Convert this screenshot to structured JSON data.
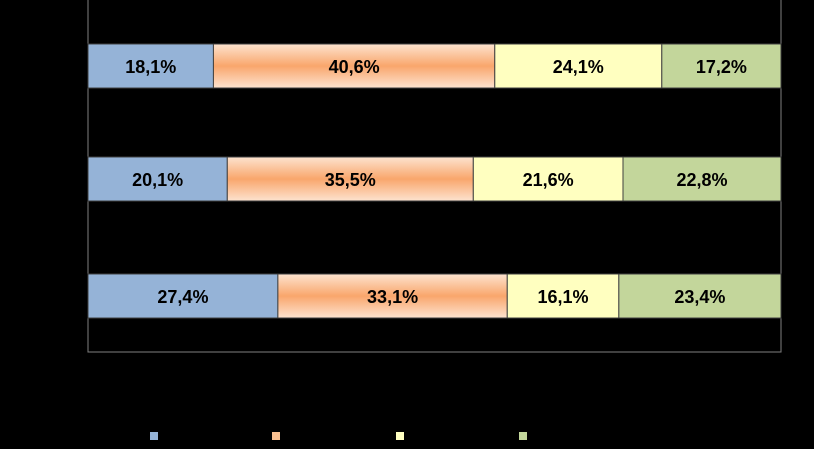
{
  "chart_data": {
    "type": "stacked_bar_horizontal",
    "categories": [
      null,
      null,
      null
    ],
    "xlim": [
      0,
      100
    ],
    "series": [
      {
        "color": "#95b3d7",
        "values": [
          18.1,
          20.1,
          27.4
        ],
        "value_labels": [
          "18,1%",
          "20,1%",
          "27,4%"
        ]
      },
      {
        "color": "#fac090",
        "values": [
          40.6,
          35.5,
          33.1
        ],
        "value_labels": [
          "40,6%",
          "35,5%",
          "33,1%"
        ]
      },
      {
        "color": "#ffffc0",
        "values": [
          24.1,
          21.6,
          16.1
        ],
        "value_labels": [
          "24,1%",
          "21,6%",
          "16,1%"
        ]
      },
      {
        "color": "#c3d69b",
        "values": [
          17.2,
          22.8,
          23.4
        ],
        "value_labels": [
          "17,2%",
          "22,8%",
          "23,4%"
        ]
      }
    ],
    "legend": "bottom"
  }
}
